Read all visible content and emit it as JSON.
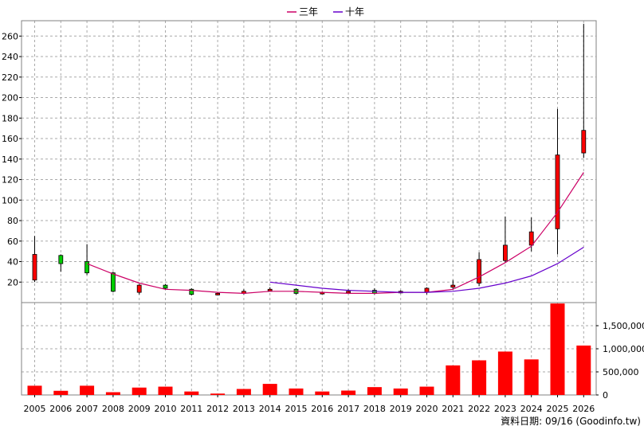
{
  "legend": [
    {
      "name": "三年",
      "color": "#cc0066"
    },
    {
      "name": "十年",
      "color": "#6600cc"
    }
  ],
  "footer_text": "資料日期: 09/16 (Goodinfo.tw)",
  "chart_data": {
    "type": "candlestick",
    "categories": [
      "2005",
      "2006",
      "2007",
      "2008",
      "2009",
      "2010",
      "2011",
      "2012",
      "2013",
      "2014",
      "2015",
      "2016",
      "2017",
      "2018",
      "2019",
      "2020",
      "2021",
      "2022",
      "2023",
      "2024",
      "2025",
      "2026"
    ],
    "price_axis": {
      "ylim": [
        0,
        275
      ],
      "ticks": [
        20,
        40,
        60,
        80,
        100,
        120,
        140,
        160,
        180,
        200,
        220,
        240,
        260
      ]
    },
    "volume_axis": {
      "ylim": [
        0,
        2000000
      ],
      "ticks": [
        0,
        500000,
        1000000,
        1500000
      ],
      "tick_labels": [
        "0",
        "500,000",
        "1,000,000",
        "1,500,000"
      ]
    },
    "candles": [
      {
        "year": "2005",
        "open": 22,
        "close": 47,
        "high": 65,
        "low": 20,
        "dir": "up"
      },
      {
        "year": "2006",
        "open": 46,
        "close": 38,
        "high": 47,
        "low": 30,
        "dir": "down"
      },
      {
        "year": "2007",
        "open": 40,
        "close": 29,
        "high": 57,
        "low": 27,
        "dir": "down"
      },
      {
        "year": "2008",
        "open": 29,
        "close": 11,
        "high": 30,
        "low": 10,
        "dir": "down"
      },
      {
        "year": "2009",
        "open": 10,
        "close": 17,
        "high": 18,
        "low": 8,
        "dir": "up"
      },
      {
        "year": "2010",
        "open": 17,
        "close": 14,
        "high": 18,
        "low": 13,
        "dir": "down"
      },
      {
        "year": "2011",
        "open": 13,
        "close": 8,
        "high": 14,
        "low": 7,
        "dir": "down"
      },
      {
        "year": "2012",
        "open": 8,
        "close": 9,
        "high": 10,
        "low": 7,
        "dir": "up"
      },
      {
        "year": "2013",
        "open": 9,
        "close": 11,
        "high": 13,
        "low": 8,
        "dir": "up"
      },
      {
        "year": "2014",
        "open": 12,
        "close": 13,
        "high": 15,
        "low": 11,
        "dir": "up"
      },
      {
        "year": "2015",
        "open": 13,
        "close": 9,
        "high": 14,
        "low": 8,
        "dir": "down"
      },
      {
        "year": "2016",
        "open": 9,
        "close": 10,
        "high": 11,
        "low": 8,
        "dir": "up"
      },
      {
        "year": "2017",
        "open": 10,
        "close": 11,
        "high": 13,
        "low": 9,
        "dir": "up"
      },
      {
        "year": "2018",
        "open": 12,
        "close": 9,
        "high": 14,
        "low": 8,
        "dir": "down"
      },
      {
        "year": "2019",
        "open": 10,
        "close": 11,
        "high": 12,
        "low": 9,
        "dir": "up"
      },
      {
        "year": "2020",
        "open": 10,
        "close": 14,
        "high": 15,
        "low": 8,
        "dir": "up"
      },
      {
        "year": "2021",
        "open": 15,
        "close": 17,
        "high": 22,
        "low": 13,
        "dir": "up"
      },
      {
        "year": "2022",
        "open": 19,
        "close": 42,
        "high": 49,
        "low": 16,
        "dir": "up"
      },
      {
        "year": "2023",
        "open": 41,
        "close": 56,
        "high": 84,
        "low": 39,
        "dir": "up"
      },
      {
        "year": "2024",
        "open": 56,
        "close": 69,
        "high": 83,
        "low": 50,
        "dir": "up"
      },
      {
        "year": "2025",
        "open": 72,
        "close": 144,
        "high": 189,
        "low": 47,
        "dir": "up"
      },
      {
        "year": "2026",
        "open": 146,
        "close": 168,
        "high": 272,
        "low": 141,
        "dir": "up"
      }
    ],
    "volume": [
      200000,
      90000,
      200000,
      60000,
      160000,
      180000,
      75000,
      30000,
      130000,
      240000,
      140000,
      75000,
      95000,
      170000,
      140000,
      180000,
      640000,
      750000,
      940000,
      770000,
      1980000,
      1070000
    ],
    "series": [
      {
        "name": "三年",
        "color": "#cc0066",
        "x": [
          "2007",
          "2008",
          "2009",
          "2010",
          "2011",
          "2012",
          "2013",
          "2014",
          "2015",
          "2016",
          "2017",
          "2018",
          "2019",
          "2020",
          "2021",
          "2022",
          "2023",
          "2024",
          "2025",
          "2026"
        ],
        "values": [
          38,
          28,
          19,
          13,
          12,
          10,
          9,
          11,
          11,
          10,
          9,
          9,
          10,
          10,
          13,
          25,
          39,
          55,
          88,
          127
        ]
      },
      {
        "name": "十年",
        "color": "#6600cc",
        "x": [
          "2014",
          "2015",
          "2016",
          "2017",
          "2018",
          "2019",
          "2020",
          "2021",
          "2022",
          "2023",
          "2024",
          "2025",
          "2026"
        ],
        "values": [
          20,
          17,
          14,
          12,
          11,
          10,
          10,
          11,
          14,
          19,
          26,
          38,
          54
        ]
      }
    ],
    "grid": true,
    "legend_position": "top-center"
  }
}
